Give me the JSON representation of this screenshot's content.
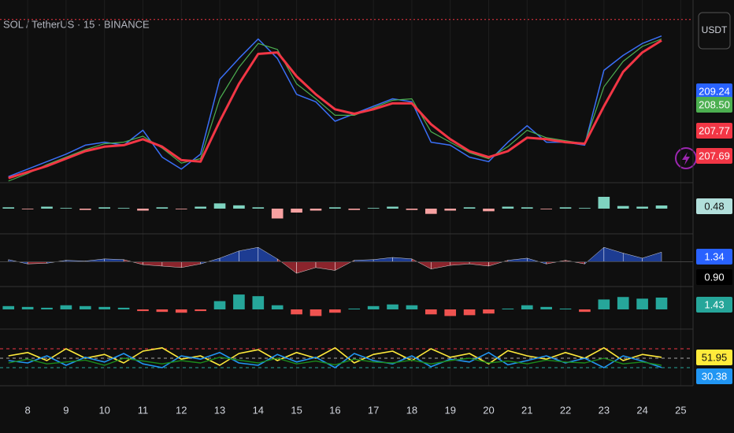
{
  "header": {
    "symbol": "SOL / TetherUS · 15 · BINANCE",
    "currency": "USDT"
  },
  "chart_data": [
    {
      "type": "line",
      "x": [
        7.5,
        8,
        8.5,
        9,
        9.5,
        10,
        10.5,
        11,
        11.5,
        12,
        12.5,
        13,
        13.5,
        14,
        14.5,
        15,
        15.5,
        16,
        16.5,
        17,
        17.5,
        18,
        18.5,
        19,
        19.5,
        20,
        20.5,
        21,
        21.5,
        22,
        22.5,
        23,
        23.5,
        24,
        24.5
      ],
      "xlim": [
        7.28,
        25.32
      ],
      "xticks": [
        8,
        9,
        10,
        11,
        12,
        13,
        14,
        15,
        16,
        17,
        18,
        19,
        20,
        21,
        22,
        23,
        24,
        25
      ],
      "ylim": [
        203,
        214
      ],
      "high_line": 213.8,
      "high_color": "#f23645",
      "series": [
        {
          "color": "#3a6ff7",
          "width": 1.5,
          "values": [
            203.3,
            203.8,
            204.3,
            204.8,
            205.4,
            205.6,
            205.4,
            206.4,
            204.6,
            203.8,
            204.8,
            209.8,
            211.2,
            212.5,
            211.2,
            208.8,
            208.3,
            207.0,
            207.5,
            208.0,
            208.5,
            208.3,
            205.6,
            205.4,
            204.6,
            204.3,
            205.6,
            206.7,
            205.6,
            205.6,
            205.4,
            210.4,
            211.4,
            212.2,
            212.7
          ]
        },
        {
          "color": "#4caf50",
          "width": 1.2,
          "values": [
            203.0,
            203.5,
            204.1,
            204.6,
            205.1,
            205.5,
            205.6,
            206.0,
            205.2,
            204.2,
            204.5,
            208.5,
            210.6,
            212.2,
            211.8,
            209.5,
            208.5,
            207.4,
            207.4,
            207.9,
            208.4,
            208.5,
            206.3,
            205.6,
            204.9,
            204.5,
            205.3,
            206.4,
            205.9,
            205.7,
            205.5,
            209.3,
            211.0,
            212.0,
            212.5
          ]
        },
        {
          "color": "#f23645",
          "width": 3,
          "values": [
            203.2,
            203.6,
            204.0,
            204.5,
            205.0,
            205.3,
            205.4,
            205.8,
            205.3,
            204.4,
            204.3,
            207.0,
            209.5,
            211.5,
            211.6,
            210.0,
            208.8,
            207.8,
            207.5,
            207.8,
            208.2,
            208.2,
            206.8,
            205.8,
            205.0,
            204.6,
            205.0,
            205.9,
            205.8,
            205.6,
            205.5,
            208.0,
            210.3,
            211.6,
            212.4
          ]
        }
      ],
      "tags": [
        {
          "text": "209.24",
          "color": "#2962ff"
        },
        {
          "text": "208.50",
          "color": "#4caf50"
        },
        {
          "text": "207.77",
          "color": "#f23645"
        },
        {
          "text": "207.69",
          "color": "#f23645"
        }
      ]
    },
    {
      "type": "bar",
      "ylim": [
        -3,
        3
      ],
      "up_color": "#7fd3c0",
      "down_color": "#f7a1a1",
      "values": [
        0.2,
        -0.1,
        0.3,
        0.1,
        -0.2,
        0.2,
        0.1,
        -0.3,
        0.2,
        -0.1,
        0.3,
        0.8,
        0.5,
        0.2,
        -1.5,
        -0.6,
        -0.3,
        0.2,
        -0.2,
        0.1,
        0.3,
        -0.2,
        -0.8,
        -0.3,
        0.2,
        -0.4,
        0.3,
        0.2,
        -0.1,
        0.2,
        0.1,
        1.8,
        0.4,
        0.3,
        0.48
      ],
      "tags": [
        {
          "text": "0.48",
          "color": "#b2dfdb",
          "ink": "#111"
        }
      ]
    },
    {
      "type": "area",
      "ylim": [
        -3,
        3
      ],
      "up_color": "#2962ff",
      "down_color": "#f23645",
      "values": [
        0.3,
        -0.3,
        -0.2,
        0.2,
        0.1,
        0.4,
        0.3,
        -0.4,
        -0.6,
        -0.8,
        -0.3,
        0.5,
        1.5,
        2.0,
        0.4,
        -1.6,
        -0.8,
        -1.2,
        0.2,
        0.3,
        0.6,
        0.4,
        -1.0,
        -0.5,
        -0.3,
        -0.6,
        0.2,
        0.5,
        -0.3,
        0.2,
        -0.3,
        2.0,
        1.2,
        0.5,
        1.34
      ],
      "tags": [
        {
          "text": "1.34",
          "color": "#2962ff",
          "ink": "#fff"
        },
        {
          "text": "0.90",
          "color": "#000",
          "ink": "#fff"
        }
      ]
    },
    {
      "type": "bar",
      "ylim": [
        -2,
        2
      ],
      "up_color": "#26a69a",
      "down_color": "#ef5350",
      "values": [
        0.4,
        0.3,
        0.2,
        0.5,
        0.4,
        0.3,
        0.2,
        -0.2,
        -0.3,
        -0.4,
        -0.2,
        1.0,
        1.8,
        1.6,
        0.5,
        -0.6,
        -0.8,
        -0.4,
        0.1,
        0.4,
        0.6,
        0.5,
        -0.6,
        -0.8,
        -0.7,
        -0.5,
        0.1,
        0.5,
        0.3,
        0.1,
        -0.3,
        1.2,
        1.5,
        1.3,
        1.43
      ],
      "tags": [
        {
          "text": "1.43",
          "color": "#26a69a",
          "ink": "#fff"
        }
      ]
    },
    {
      "type": "line",
      "ylim": [
        0,
        100
      ],
      "levels": [
        70,
        50,
        30
      ],
      "level_colors": [
        "#f23645",
        "#aaaaaa",
        "#26a69a"
      ],
      "series": [
        {
          "color": "#ffeb3b",
          "width": 1.6,
          "values": [
            55,
            62,
            45,
            70,
            50,
            58,
            40,
            65,
            72,
            48,
            55,
            35,
            60,
            68,
            45,
            62,
            50,
            72,
            40,
            58,
            65,
            45,
            70,
            52,
            60,
            38,
            66,
            55,
            48,
            62,
            50,
            72,
            45,
            58,
            51.95
          ]
        },
        {
          "color": "#2196f3",
          "width": 1.6,
          "values": [
            45,
            40,
            55,
            35,
            52,
            42,
            60,
            38,
            30,
            55,
            48,
            62,
            40,
            35,
            58,
            42,
            52,
            30,
            60,
            45,
            38,
            55,
            32,
            48,
            42,
            62,
            36,
            45,
            55,
            40,
            50,
            30,
            55,
            44,
            30.38
          ]
        },
        {
          "color": "#1b8a1b",
          "width": 1.4,
          "values": [
            40,
            48,
            38,
            42,
            46,
            35,
            50,
            44,
            38,
            45,
            40,
            52,
            46,
            40,
            50,
            38,
            44,
            36,
            48,
            42,
            40,
            46,
            38,
            45,
            50,
            40,
            44,
            38,
            46,
            42,
            40,
            50,
            38,
            42,
            35
          ]
        }
      ],
      "tags": [
        {
          "text": "51.95",
          "color": "#ffeb3b",
          "ink": "#111"
        },
        {
          "text": "30.38",
          "color": "#2196f3",
          "ink": "#fff"
        }
      ]
    }
  ]
}
